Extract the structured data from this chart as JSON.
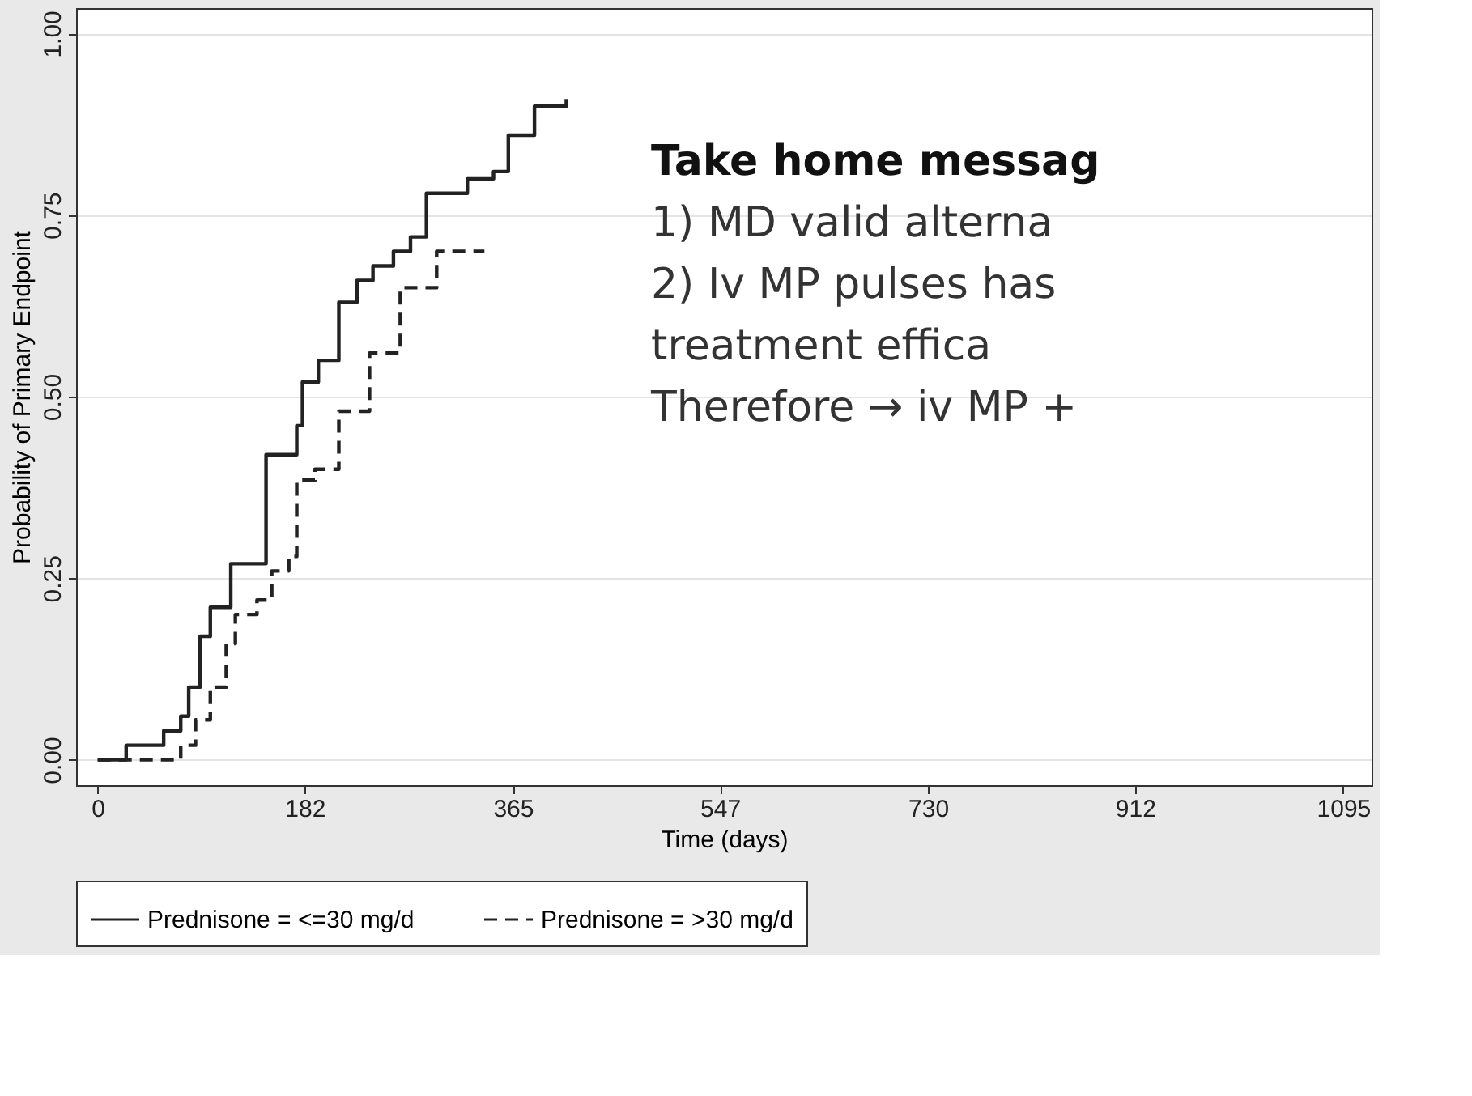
{
  "chart_data": {
    "type": "step",
    "xlabel": "Time (days)",
    "ylabel": "Probability of Primary Endpoint",
    "xlim": [
      -19,
      1120
    ],
    "xticks": [
      0,
      182,
      365,
      547,
      730,
      912,
      1095
    ],
    "ylim": [
      -0.035,
      1.035
    ],
    "yticks": [
      {
        "value": 0,
        "label": "0.00"
      },
      {
        "value": 0.25,
        "label": "0.25"
      },
      {
        "value": 0.5,
        "label": "0.50"
      },
      {
        "value": 0.75,
        "label": "0.75"
      },
      {
        "value": 1,
        "label": "1.00"
      }
    ],
    "grid": "y",
    "legend": "bottom",
    "marker": "none",
    "series": [
      {
        "name": "Prednisone = <=30 mg/d",
        "color": "#222222",
        "line_style": "solid",
        "x": [
          0,
          25,
          58,
          73,
          80,
          90,
          99,
          117,
          148,
          175,
          180,
          194,
          212,
          228,
          242,
          260,
          275,
          289,
          325,
          348,
          361,
          384,
          412
        ],
        "values": [
          0,
          0.02,
          0.04,
          0.06,
          0.1,
          0.17,
          0.21,
          0.27,
          0.42,
          0.46,
          0.52,
          0.55,
          0.63,
          0.66,
          0.68,
          0.7,
          0.72,
          0.78,
          0.8,
          0.81,
          0.86,
          0.9,
          0.91
        ]
      },
      {
        "name": "Prednisone = >30 mg/d",
        "color": "#222222",
        "line_style": "dashed",
        "x": [
          0,
          73,
          86,
          99,
          113,
          121,
          140,
          153,
          168,
          175,
          191,
          212,
          239,
          266,
          298,
          340
        ],
        "values": [
          0,
          0.02,
          0.055,
          0.1,
          0.16,
          0.2,
          0.22,
          0.26,
          0.28,
          0.385,
          0.4,
          0.48,
          0.56,
          0.65,
          0.7,
          0.7
        ]
      }
    ],
    "annotations": [
      "Take home messag",
      "1)  MD valid alterna",
      "2)  Iv MP pulses has",
      "     treatment effica",
      "Therefore → iv MP +"
    ]
  }
}
